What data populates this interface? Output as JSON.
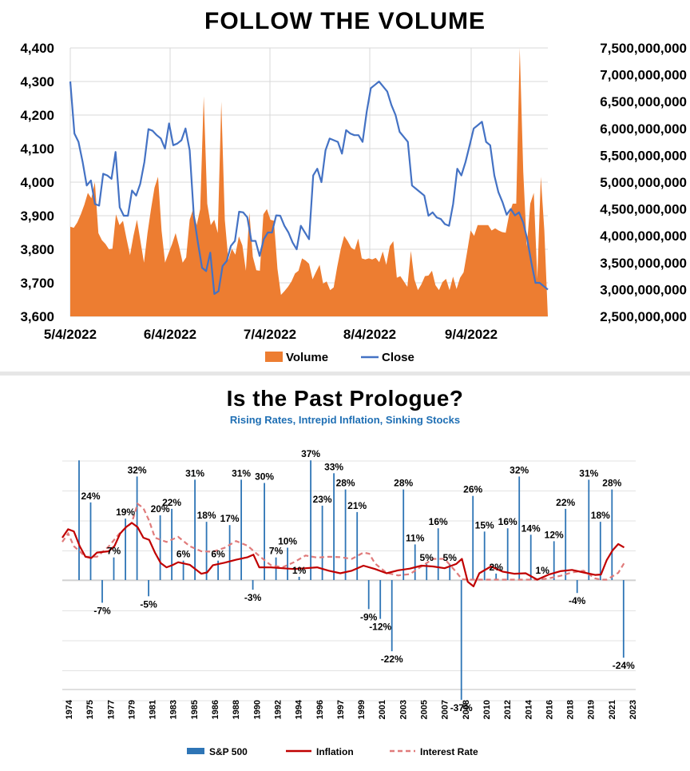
{
  "chart_data": [
    {
      "type": "area+line",
      "title": "FOLLOW THE VOLUME",
      "x_ticks": [
        "5/4/2022",
        "6/4/2022",
        "7/4/2022",
        "8/4/2022",
        "9/4/2022"
      ],
      "y_left": {
        "ylim": [
          3600,
          4400
        ],
        "ticks": [
          "4,400",
          "4,300",
          "4,200",
          "4,100",
          "4,000",
          "3,900",
          "3,800",
          "3,700",
          "3,600"
        ]
      },
      "y_right": {
        "ylim": [
          2500000000,
          7500000000
        ],
        "ticks": [
          "7,500,000,000",
          "7,000,000,000",
          "6,500,000,000",
          "6,000,000,000",
          "5,500,000,000",
          "5,000,000,000",
          "4,500,000,000",
          "4,000,000,000",
          "3,500,000,000",
          "3,000,000,000",
          "2,500,000,000"
        ]
      },
      "grid": true,
      "legend_position": "bottom",
      "colors": {
        "volume": "#ed7d31",
        "close": "#4472c4"
      },
      "series": [
        {
          "name": "Volume",
          "axis": "right",
          "values": [
            4170000000,
            4150000000,
            4250000000,
            4400000000,
            4580000000,
            4800000000,
            4700000000,
            5000000000,
            4050000000,
            3920000000,
            3850000000,
            3750000000,
            3760000000,
            4400000000,
            4200000000,
            4280000000,
            3950000000,
            3640000000,
            4000000000,
            4300000000,
            3900000000,
            3500000000,
            4050000000,
            4500000000,
            4900000000,
            5100000000,
            4100000000,
            3500000000,
            3680000000,
            3850000000,
            4050000000,
            3800000000,
            3500000000,
            3600000000,
            4300000000,
            4500000000,
            4200000000,
            4500000000,
            6600000000,
            4600000000,
            4200000000,
            4300000000,
            4050000000,
            6500000000,
            4300000000,
            3550000000,
            3760000000,
            3650000000,
            3990000000,
            3820000000,
            3350000000,
            4430000000,
            3610000000,
            3360000000,
            3350000000,
            4400000000,
            4500000000,
            4300000000,
            4280000000,
            3390000000,
            2900000000,
            2970000000,
            3050000000,
            3150000000,
            3300000000,
            3350000000,
            3580000000,
            3540000000,
            3480000000,
            3190000000,
            3330000000,
            3460000000,
            3110000000,
            3150000000,
            2990000000,
            3040000000,
            3420000000,
            3750000000,
            4000000000,
            3900000000,
            3780000000,
            3740000000,
            3950000000,
            3580000000,
            3560000000,
            3580000000,
            3560000000,
            3590000000,
            3510000000,
            3710000000,
            3460000000,
            3810000000,
            3900000000,
            3220000000,
            3250000000,
            3150000000,
            3050000000,
            3720000000,
            3190000000,
            2990000000,
            3100000000,
            3250000000,
            3260000000,
            3350000000,
            3080000000,
            2990000000,
            3140000000,
            3200000000,
            2990000000,
            3240000000,
            3010000000,
            3220000000,
            3320000000,
            3700000000,
            4100000000,
            4000000000,
            4200000000,
            4200000000,
            4200000000,
            4200000000,
            4100000000,
            4140000000,
            4100000000,
            4070000000,
            4060000000,
            4400000000,
            4600000000,
            4600000000,
            7500000000,
            5200000000,
            3800000000,
            4600000000,
            4800000000,
            3200000000,
            5100000000,
            4100000000,
            2500000000
          ]
        },
        {
          "name": "Close",
          "axis": "left",
          "values": [
            4300,
            4145,
            4120,
            4060,
            3990,
            4005,
            3935,
            3930,
            4025,
            4020,
            4010,
            4090,
            3925,
            3900,
            3900,
            3975,
            3960,
            3995,
            4060,
            4158,
            4153,
            4140,
            4130,
            4100,
            4175,
            4110,
            4115,
            4125,
            4160,
            4095,
            3900,
            3820,
            3745,
            3735,
            3790,
            3667,
            3675,
            3750,
            3765,
            3810,
            3825,
            3912,
            3910,
            3895,
            3825,
            3825,
            3780,
            3830,
            3850,
            3850,
            3901,
            3900,
            3870,
            3850,
            3820,
            3800,
            3870,
            3850,
            3830,
            4020,
            4040,
            4000,
            4095,
            4130,
            4125,
            4120,
            4085,
            4155,
            4145,
            4140,
            4140,
            4120,
            4210,
            4280,
            4290,
            4300,
            4285,
            4270,
            4230,
            4200,
            4150,
            4135,
            4120,
            3990,
            3980,
            3970,
            3960,
            3900,
            3910,
            3895,
            3890,
            3875,
            3870,
            3935,
            4040,
            4020,
            4060,
            4110,
            4160,
            4170,
            4180,
            4120,
            4110,
            4020,
            3970,
            3940,
            3903,
            3920,
            3901,
            3910,
            3880,
            3830,
            3760,
            3700,
            3700,
            3690,
            3680
          ]
        }
      ]
    },
    {
      "type": "bar+line",
      "title": "Is the Past Prologue?",
      "subtitle": "Rising Rates, Intrepid Inflation, Sinking Stocks",
      "x_labels": [
        "1974",
        "1975",
        "1977",
        "1979",
        "1981",
        "1983",
        "1985",
        "1986",
        "1988",
        "1990",
        "1992",
        "1994",
        "1996",
        "1997",
        "1999",
        "2001",
        "2003",
        "2005",
        "2007",
        "2008",
        "2010",
        "2012",
        "2014",
        "2016",
        "2018",
        "2019",
        "2021",
        "2023"
      ],
      "grid": true,
      "legend_position": "bottom",
      "colors": {
        "sp500": "#2e75b6",
        "inflation": "#c00000",
        "interest": "#e07b7b"
      },
      "series": [
        {
          "name": "S&P 500",
          "years": [
            1975,
            1976,
            1977,
            1978,
            1979,
            1980,
            1981,
            1982,
            1983,
            1984,
            1985,
            1986,
            1987,
            1988,
            1989,
            1990,
            1991,
            1992,
            1993,
            1994,
            1995,
            1996,
            1997,
            1998,
            1999,
            2000,
            2001,
            2002,
            2003,
            2004,
            2005,
            2006,
            2007,
            2008,
            2009,
            2010,
            2011,
            2012,
            2013,
            2014,
            2015,
            2016,
            2017,
            2018,
            2019,
            2020,
            2021,
            2022
          ],
          "values": [
            37,
            24,
            -7,
            7,
            19,
            32,
            -5,
            20,
            22,
            6,
            31,
            18,
            6,
            17,
            31,
            -3,
            30,
            7,
            10,
            1,
            37,
            23,
            33,
            28,
            21,
            -9,
            -12,
            -22,
            28,
            11,
            5,
            16,
            5,
            -37,
            26,
            15,
            2,
            16,
            32,
            14,
            1,
            12,
            22,
            -4,
            31,
            18,
            28,
            -24
          ],
          "labels": [
            "",
            "24%",
            "-7%",
            "7%",
            "19%",
            "32%",
            "-5%",
            "20%",
            "22%",
            "6%",
            "31%",
            "18%",
            "6%",
            "17%",
            "31%",
            "-3%",
            "30%",
            "7%",
            "10%",
            "1%",
            "37%",
            "23%",
            "33%",
            "28%",
            "21%",
            "-9%",
            "-12%",
            "-22%",
            "28%",
            "11%",
            "5%",
            "16%",
            "5%",
            "-37%",
            "26%",
            "15%",
            "2%",
            "16%",
            "32%",
            "14%",
            "1%",
            "12%",
            "22%",
            "-4%",
            "31%",
            "18%",
            "28%",
            "-24%"
          ]
        },
        {
          "name": "Inflation",
          "points": [
            [
              1974,
              10
            ],
            [
              1974.5,
              12
            ],
            [
              1975,
              11.5
            ],
            [
              1975.5,
              8
            ],
            [
              1976,
              5.5
            ],
            [
              1976.5,
              5.2
            ],
            [
              1977,
              6.5
            ],
            [
              1978,
              6.8
            ],
            [
              1978.5,
              8
            ],
            [
              1979,
              11
            ],
            [
              1979.5,
              12.5
            ],
            [
              1980,
              13.5
            ],
            [
              1980.5,
              12.5
            ],
            [
              1981,
              10
            ],
            [
              1981.5,
              9.5
            ],
            [
              1982,
              6.5
            ],
            [
              1982.5,
              4
            ],
            [
              1983,
              3
            ],
            [
              1983.5,
              3.5
            ],
            [
              1984,
              4.2
            ],
            [
              1985,
              3.6
            ],
            [
              1986,
              1.5
            ],
            [
              1986.5,
              1.8
            ],
            [
              1987,
              3.5
            ],
            [
              1988,
              4.1
            ],
            [
              1989,
              4.8
            ],
            [
              1990,
              5.4
            ],
            [
              1990.5,
              6
            ],
            [
              1991,
              3
            ],
            [
              1992,
              3
            ],
            [
              1993,
              2.8
            ],
            [
              1994,
              2.6
            ],
            [
              1995,
              2.8
            ],
            [
              1996,
              3
            ],
            [
              1997,
              2.2
            ],
            [
              1998,
              1.6
            ],
            [
              1999,
              2.2
            ],
            [
              2000,
              3.4
            ],
            [
              2001,
              2.6
            ],
            [
              2002,
              1.6
            ],
            [
              2003,
              2.3
            ],
            [
              2004,
              2.7
            ],
            [
              2005,
              3.4
            ],
            [
              2006,
              3.2
            ],
            [
              2007,
              2.8
            ],
            [
              2008,
              3.8
            ],
            [
              2008.5,
              5
            ],
            [
              2009,
              -0.4
            ],
            [
              2009.5,
              -1.5
            ],
            [
              2010,
              1.6
            ],
            [
              2011,
              3.2
            ],
            [
              2012,
              2
            ],
            [
              2013,
              1.5
            ],
            [
              2014,
              1.6
            ],
            [
              2015,
              0.1
            ],
            [
              2016,
              1.3
            ],
            [
              2017,
              2.1
            ],
            [
              2018,
              2.4
            ],
            [
              2019,
              1.8
            ],
            [
              2020,
              1.2
            ],
            [
              2020.5,
              1.3
            ],
            [
              2021,
              4.7
            ],
            [
              2021.5,
              7
            ],
            [
              2022,
              8.5
            ],
            [
              2022.5,
              7.7
            ]
          ]
        },
        {
          "name": "Interest Rate",
          "points": [
            [
              1974,
              9
            ],
            [
              1974.5,
              11
            ],
            [
              1975,
              8
            ],
            [
              1976,
              5.5
            ],
            [
              1977,
              5.5
            ],
            [
              1978,
              7.9
            ],
            [
              1979,
              11.2
            ],
            [
              1980,
              13.5
            ],
            [
              1980.5,
              18
            ],
            [
              1981,
              17
            ],
            [
              1981.5,
              14
            ],
            [
              1982,
              10
            ],
            [
              1983,
              9
            ],
            [
              1984,
              10.2
            ],
            [
              1985,
              8
            ],
            [
              1986,
              6.8
            ],
            [
              1987,
              6.7
            ],
            [
              1988,
              7.6
            ],
            [
              1989,
              9.2
            ],
            [
              1990,
              8.1
            ],
            [
              1991,
              5.7
            ],
            [
              1992,
              3.5
            ],
            [
              1993,
              3
            ],
            [
              1994,
              4.2
            ],
            [
              1995,
              5.8
            ],
            [
              1996,
              5.3
            ],
            [
              1997,
              5.5
            ],
            [
              1998,
              5.4
            ],
            [
              1999,
              5
            ],
            [
              2000,
              6.5
            ],
            [
              2000.5,
              6.2
            ],
            [
              2001,
              3.9
            ],
            [
              2002,
              1.7
            ],
            [
              2003,
              1.1
            ],
            [
              2004,
              1.4
            ],
            [
              2005,
              3.2
            ],
            [
              2006,
              5
            ],
            [
              2007,
              5
            ],
            [
              2008,
              1.9
            ],
            [
              2008.5,
              0.2
            ],
            [
              2009,
              0.1
            ],
            [
              2015,
              0.1
            ],
            [
              2016,
              0.4
            ],
            [
              2017,
              1
            ],
            [
              2018,
              1.8
            ],
            [
              2019,
              2.2
            ],
            [
              2020,
              0.4
            ],
            [
              2020.5,
              0.1
            ],
            [
              2021,
              0.1
            ],
            [
              2022,
              1.7
            ],
            [
              2022.5,
              4
            ]
          ]
        }
      ]
    }
  ]
}
